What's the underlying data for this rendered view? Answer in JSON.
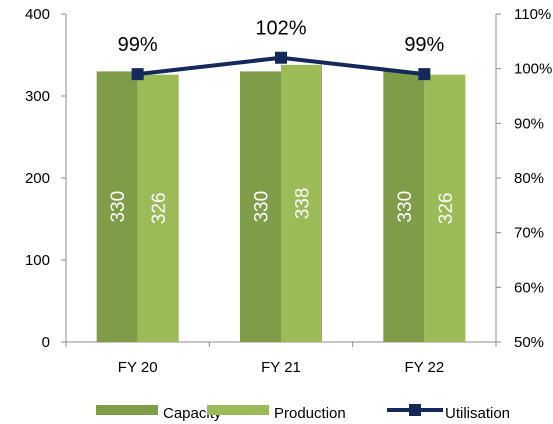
{
  "chart_data": {
    "type": "bar",
    "categories": [
      "FY 20",
      "FY 21",
      "FY 22"
    ],
    "series": [
      {
        "name": "Capacity",
        "kind": "bar",
        "axis": "left",
        "color": "#7f9c49",
        "values": [
          330,
          330,
          330
        ]
      },
      {
        "name": "Production",
        "kind": "bar",
        "axis": "left",
        "color": "#9bbb59",
        "values": [
          326,
          338,
          326
        ]
      },
      {
        "name": "Utilisation",
        "kind": "line",
        "axis": "right",
        "color": "#14285a",
        "values": [
          99,
          102,
          99
        ],
        "labels": [
          "99%",
          "102%",
          "99%"
        ]
      }
    ],
    "y_left": {
      "min": 0,
      "max": 400,
      "ticks": [
        0,
        100,
        200,
        300,
        400
      ],
      "tick_labels": [
        "0",
        "100",
        "200",
        "300",
        "400"
      ]
    },
    "y_right": {
      "min": 50,
      "max": 110,
      "ticks": [
        50,
        60,
        70,
        80,
        90,
        100,
        110
      ],
      "tick_labels": [
        "50%",
        "60%",
        "70%",
        "80%",
        "90%",
        "100%",
        "110%"
      ]
    },
    "grid": false,
    "legend": "bottom",
    "legend_entries": [
      "Capacity",
      "Production",
      "Utilisation"
    ],
    "title": "",
    "xlabel": "",
    "ylabel": ""
  }
}
